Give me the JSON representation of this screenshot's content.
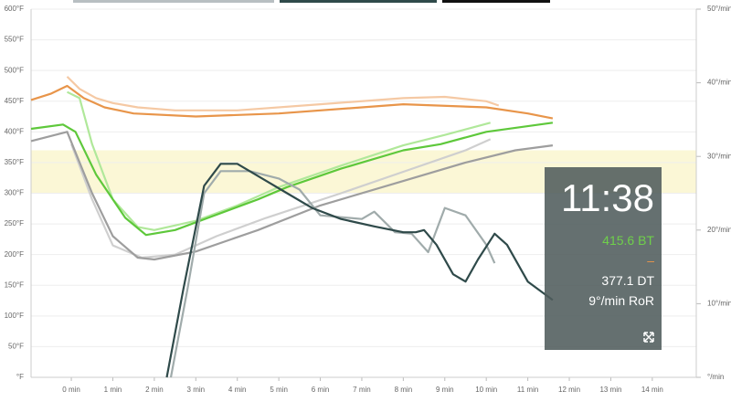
{
  "chart_data": {
    "type": "line",
    "xlim": [
      -0.97,
      15.06
    ],
    "xticks": [
      {
        "value": 0,
        "label": "0 min"
      },
      {
        "value": 1,
        "label": "1 min"
      },
      {
        "value": 2,
        "label": "2 min"
      },
      {
        "value": 3,
        "label": "3 min"
      },
      {
        "value": 4,
        "label": "4 min"
      },
      {
        "value": 5,
        "label": "5 min"
      },
      {
        "value": 6,
        "label": "6 min"
      },
      {
        "value": 7,
        "label": "7 min"
      },
      {
        "value": 8,
        "label": "8 min"
      },
      {
        "value": 9,
        "label": "9 min"
      },
      {
        "value": 10,
        "label": "10 min"
      },
      {
        "value": 11,
        "label": "11 min"
      },
      {
        "value": 12,
        "label": "12 min"
      },
      {
        "value": 13,
        "label": "13 min"
      },
      {
        "value": 14,
        "label": "14 min"
      }
    ],
    "ylim": [
      0,
      600
    ],
    "yticks": [
      {
        "value": 0,
        "label": "°F"
      },
      {
        "value": 50,
        "label": "50°F"
      },
      {
        "value": 100,
        "label": "100°F"
      },
      {
        "value": 150,
        "label": "150°F"
      },
      {
        "value": 200,
        "label": "200°F"
      },
      {
        "value": 250,
        "label": "250°F"
      },
      {
        "value": 300,
        "label": "300°F"
      },
      {
        "value": 350,
        "label": "350°F"
      },
      {
        "value": 400,
        "label": "400°F"
      },
      {
        "value": 450,
        "label": "450°F"
      },
      {
        "value": 500,
        "label": "500°F"
      },
      {
        "value": 550,
        "label": "550°F"
      },
      {
        "value": 600,
        "label": "600°F"
      }
    ],
    "y2lim": [
      0,
      50
    ],
    "y2ticks": [
      {
        "value": 0,
        "label": "°/min"
      },
      {
        "value": 10,
        "label": "10°/min"
      },
      {
        "value": 20,
        "label": "20°/min"
      },
      {
        "value": 30,
        "label": "30°/min"
      },
      {
        "value": 40,
        "label": "40°/min"
      },
      {
        "value": 50,
        "label": "50°/min"
      }
    ],
    "grid": true,
    "band": {
      "from": 300,
      "to": 370,
      "color": "#fbf7d6"
    },
    "series": [
      {
        "color": "#f5c9a4",
        "x": [
          -0.1,
          0.2,
          0.6,
          1,
          1.6,
          2.5,
          4,
          6,
          8,
          9,
          10,
          10.3
        ],
        "values": [
          490,
          470,
          455,
          447,
          440,
          435,
          435,
          445,
          455,
          457,
          450,
          443
        ]
      },
      {
        "color": "#e8954a",
        "x": [
          -0.97,
          -0.5,
          -0.1,
          0.3,
          0.8,
          1.5,
          3,
          5,
          7,
          8,
          10,
          11,
          11.6
        ],
        "values": [
          452,
          462,
          475,
          455,
          440,
          430,
          425,
          430,
          440,
          445,
          440,
          430,
          422
        ]
      },
      {
        "color": "#cfcfcf",
        "x": [
          0,
          0.5,
          1,
          1.7,
          2.5,
          3.5,
          4.7,
          6.5,
          8,
          9.5,
          10.1
        ],
        "values": [
          380,
          290,
          215,
          195,
          200,
          230,
          260,
          300,
          335,
          370,
          388
        ]
      },
      {
        "color": "#9e9e9e",
        "x": [
          -0.97,
          -0.1,
          0.5,
          1,
          1.6,
          2,
          3,
          4.5,
          6,
          8,
          9.5,
          10.7,
          11.6
        ],
        "values": [
          385,
          400,
          300,
          230,
          195,
          192,
          205,
          240,
          280,
          320,
          350,
          370,
          378
        ]
      },
      {
        "color": "#b0e89a",
        "x": [
          -0.1,
          0.2,
          0.5,
          1,
          1.6,
          2,
          3,
          4,
          5,
          6.5,
          8,
          9,
          10.1
        ],
        "values": [
          465,
          455,
          380,
          290,
          245,
          240,
          255,
          280,
          310,
          345,
          378,
          395,
          415
        ]
      },
      {
        "color": "#5ec83b",
        "x": [
          -0.97,
          -0.2,
          0.1,
          0.6,
          1.3,
          1.8,
          2.5,
          3.3,
          4.5,
          5.2,
          6.5,
          8,
          8.9,
          10,
          11.6
        ],
        "values": [
          405,
          412,
          400,
          330,
          260,
          232,
          240,
          260,
          290,
          310,
          340,
          370,
          380,
          400,
          415
        ]
      },
      {
        "color": "#a0abab",
        "axis": "y2",
        "x": [
          2.4,
          2.8,
          3.2,
          3.6,
          4.3,
          5,
          5.5,
          6,
          7,
          7.3,
          7.8,
          8.2,
          8.6,
          9,
          9.5,
          10,
          10.2
        ],
        "values": [
          0,
          12,
          25,
          28,
          28,
          27,
          25.5,
          22,
          21.5,
          22.5,
          19.7,
          19.5,
          17,
          23,
          22,
          18,
          15.5
        ]
      },
      {
        "color": "#2f4a4a",
        "axis": "y2",
        "x": [
          2.3,
          2.7,
          3.2,
          3.6,
          4,
          4.6,
          5.2,
          5.8,
          6.5,
          7.3,
          8,
          8.3,
          8.5,
          8.8,
          9.2,
          9.5,
          9.8,
          10.2,
          10.5,
          11,
          11.6
        ],
        "values": [
          0,
          12,
          26,
          29,
          29,
          27,
          25,
          23,
          21.5,
          20.5,
          19.7,
          19.7,
          20,
          18,
          14,
          13,
          16,
          19.5,
          18,
          13,
          10.5
        ]
      }
    ]
  },
  "panel": {
    "time": "11:38",
    "bt": "415.6 BT",
    "et": "–",
    "dt": "377.1 DT",
    "ror": "9°/min RoR"
  }
}
